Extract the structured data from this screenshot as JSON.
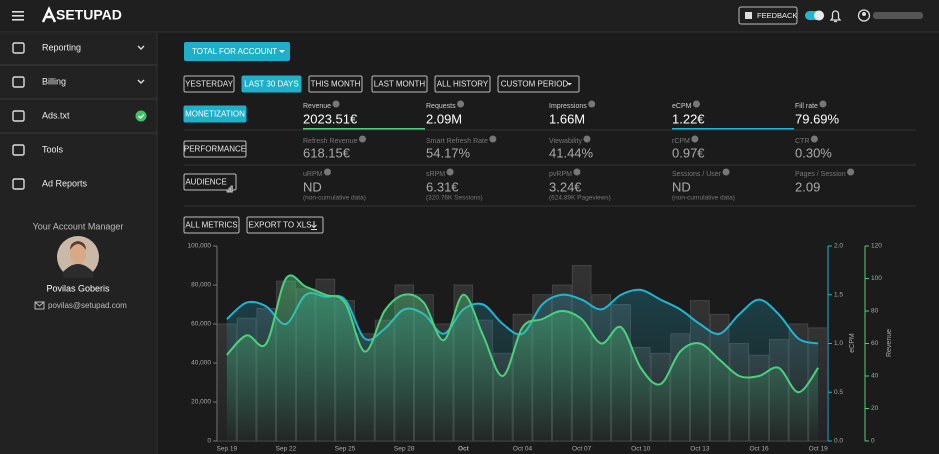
{
  "header": {
    "logo": "SETUPAD",
    "feedback": "FEEDBACK"
  },
  "sidebar": {
    "items": [
      "Reporting",
      "Billing",
      "Ads.txt",
      "Tools",
      "Ad Reports"
    ],
    "manager": {
      "heading": "Your Account Manager",
      "name": "Povilas Goberis",
      "email": "povilas@setupad.com"
    }
  },
  "toolbar": {
    "account": "TOTAL FOR ACCOUNT",
    "periods": [
      "YESTERDAY",
      "LAST 30 DAYS",
      "THIS MONTH",
      "LAST MONTH",
      "ALL HISTORY",
      "CUSTOM PERIOD"
    ]
  },
  "metric_groups": [
    {
      "button": "MONETIZATION",
      "metrics": [
        {
          "label": "Revenue",
          "value": "2023.51€",
          "color": "#4cd07d"
        },
        {
          "label": "Requests",
          "value": "2.09M"
        },
        {
          "label": "Impressions",
          "value": "1.66M"
        },
        {
          "label": "eCPM",
          "value": "1.22€",
          "color": "#1fb6d1"
        },
        {
          "label": "Fill rate",
          "value": "79.69%"
        }
      ]
    },
    {
      "button": "PERFORMANCE",
      "metrics": [
        {
          "label": "Refresh Revenue",
          "value": "618.15€"
        },
        {
          "label": "Smart Refresh Rate",
          "value": "54.17%"
        },
        {
          "label": "Viewability",
          "value": "41.44%"
        },
        {
          "label": "rCPM",
          "value": "0.97€"
        },
        {
          "label": "CTR",
          "value": "0.30%"
        }
      ]
    },
    {
      "button": "AUDIENCE",
      "metrics": [
        {
          "label": "uRPM",
          "value": "ND",
          "note": "(non-cumulative data)"
        },
        {
          "label": "sRPM",
          "value": "6.31€",
          "note": "(320.76K Sessions)"
        },
        {
          "label": "pvRPM",
          "value": "3.24€",
          "note": "(624.89K Pageviews)"
        },
        {
          "label": "Sessions / User",
          "value": "ND",
          "note": "(non-cumulative data)"
        },
        {
          "label": "Pages / Session",
          "value": "2.09"
        }
      ]
    }
  ],
  "chart_actions": [
    "ALL METRICS",
    "EXPORT TO XLS"
  ],
  "chart_data": {
    "type": "combo",
    "categories": [
      "Sep 19",
      null,
      null,
      "Sep 22",
      null,
      null,
      "Sep 25",
      null,
      null,
      "Sep 28",
      null,
      null,
      "Oct",
      null,
      null,
      "Oct 04",
      null,
      null,
      "Oct 07",
      null,
      null,
      "Oct 10",
      null,
      null,
      "Oct 13",
      null,
      null,
      "Oct 16",
      null,
      null,
      "Oct 19"
    ],
    "ylim": [
      0,
      100000
    ],
    "yticks": [
      0,
      {
        "value": 20000,
        "label": "20,000"
      },
      {
        "value": 40000,
        "label": "40,000"
      },
      {
        "value": 60000,
        "label": "60,000"
      },
      {
        "value": 80000,
        "label": "80,000"
      },
      {
        "value": 100000,
        "label": "100,000"
      }
    ],
    "y2lim": [
      0,
      2
    ],
    "y2ticks": [
      {
        "value": 0,
        "label": "0.0"
      },
      0.5,
      {
        "value": 1,
        "label": "1.0"
      },
      1.5,
      {
        "value": 2,
        "label": "2.0"
      }
    ],
    "y2label": "eCPM",
    "y3lim": [
      0,
      120
    ],
    "y3ticks": [
      0,
      20,
      40,
      60,
      80,
      100,
      120
    ],
    "y3label": "Revenue",
    "series": [
      {
        "kind": "bar",
        "color": "#2c2c2c",
        "values": [
          60000,
          63000,
          68000,
          82000,
          78000,
          83000,
          72000,
          55000,
          62000,
          80000,
          75000,
          60000,
          80000,
          62000,
          45000,
          65000,
          75000,
          80000,
          90000,
          75000,
          70000,
          48000,
          45000,
          55000,
          72000,
          65000,
          50000,
          44000,
          52000,
          60000,
          58000
        ]
      },
      {
        "kind": "line",
        "axis": "y2",
        "color": "#1fb6d1",
        "values": [
          1.25,
          1.42,
          1.38,
          1.2,
          1.5,
          1.48,
          1.45,
          1.05,
          1.15,
          1.35,
          1.3,
          1.1,
          1.35,
          1.4,
          1.2,
          1.1,
          1.4,
          1.5,
          1.45,
          1.35,
          1.5,
          1.55,
          1.45,
          1.35,
          1.2,
          1.1,
          1.3,
          1.45,
          1.3,
          1.05,
          1.0
        ]
      },
      {
        "kind": "line",
        "axis": "y3",
        "color": "#4cd07d",
        "values": [
          53,
          65,
          60,
          100,
          95,
          90,
          85,
          55,
          80,
          90,
          85,
          62,
          90,
          65,
          40,
          70,
          75,
          80,
          75,
          60,
          70,
          45,
          35,
          55,
          60,
          50,
          40,
          40,
          45,
          30,
          45
        ]
      }
    ]
  }
}
